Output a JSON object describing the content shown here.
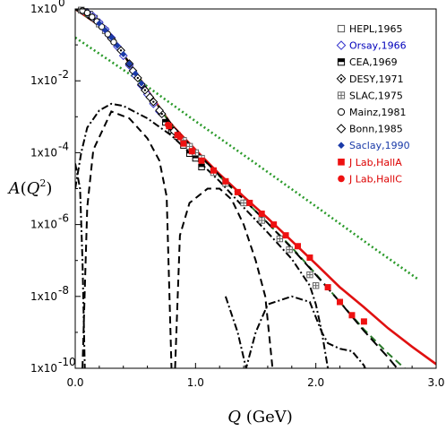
{
  "chart_data": {
    "type": "scatter",
    "title": "",
    "xlabel": "Q (GeV)",
    "ylabel": "A(Q^2)",
    "xlim": [
      0.0,
      3.0
    ],
    "ylim": [
      1e-10,
      1.0
    ],
    "yscale": "log",
    "grid": false,
    "legend_position": "top-right",
    "x_ticks": [
      {
        "value": 0.0,
        "label": "0.0"
      },
      {
        "value": 1.0,
        "label": "1.0"
      },
      {
        "value": 2.0,
        "label": "2.0"
      },
      {
        "value": 3.0,
        "label": "3.0"
      }
    ],
    "y_ticks": [
      {
        "value": 1.0,
        "base": "1x10",
        "exp": "0"
      },
      {
        "value": 0.01,
        "base": "1x10",
        "exp": "-2"
      },
      {
        "value": 0.0001,
        "base": "1x10",
        "exp": "-4"
      },
      {
        "value": 1e-06,
        "base": "1x10",
        "exp": "-6"
      },
      {
        "value": 1e-08,
        "base": "1x10",
        "exp": "-8"
      },
      {
        "value": 1e-10,
        "base": "1x10",
        "exp": "-10"
      }
    ],
    "series": [
      {
        "name": "HEPL,1965",
        "marker": "open-square",
        "color": "#555555",
        "label_color": "#000000",
        "points": [
          [
            0.05,
            0.93
          ],
          [
            0.08,
            0.85
          ],
          [
            0.12,
            0.72
          ],
          [
            0.16,
            0.55
          ],
          [
            0.2,
            0.38
          ],
          [
            0.25,
            0.25
          ]
        ]
      },
      {
        "name": "Orsay,1966",
        "marker": "open-diamond",
        "color": "#3333cc",
        "label_color": "#0000bb",
        "points": [
          [
            0.1,
            0.8
          ],
          [
            0.15,
            0.62
          ],
          [
            0.2,
            0.42
          ],
          [
            0.25,
            0.27
          ],
          [
            0.3,
            0.16
          ],
          [
            0.35,
            0.09
          ],
          [
            0.4,
            0.05
          ],
          [
            0.45,
            0.027
          ],
          [
            0.5,
            0.014
          ],
          [
            0.55,
            0.0075
          ],
          [
            0.6,
            0.0042
          ],
          [
            0.65,
            0.0023
          ],
          [
            0.7,
            0.0014
          ]
        ]
      },
      {
        "name": "CEA,1969",
        "marker": "half-square",
        "color": "#000000",
        "label_color": "#000000",
        "points": [
          [
            0.75,
            0.0007
          ],
          [
            0.8,
            0.00042
          ],
          [
            0.85,
            0.00028
          ],
          [
            0.9,
            0.00016
          ],
          [
            0.95,
            9.5e-05
          ],
          [
            1.0,
            7e-05
          ],
          [
            1.05,
            4e-05
          ]
        ]
      },
      {
        "name": "DESY,1971",
        "marker": "dotted-diamond",
        "color": "#000000",
        "label_color": "#000000",
        "points": [
          [
            0.3,
            0.15
          ],
          [
            0.38,
            0.07
          ],
          [
            0.45,
            0.03
          ],
          [
            0.52,
            0.012
          ],
          [
            0.58,
            0.0055
          ],
          [
            0.65,
            0.0026
          ],
          [
            0.72,
            0.0012
          ]
        ]
      },
      {
        "name": "SLAC,1975",
        "marker": "crossed-square",
        "color": "#666666",
        "label_color": "#000000",
        "points": [
          [
            0.9,
            0.00022
          ],
          [
            0.95,
            0.00015
          ],
          [
            1.0,
            0.0001
          ],
          [
            1.05,
            7e-05
          ],
          [
            1.15,
            2.8e-05
          ],
          [
            1.25,
            1.4e-05
          ],
          [
            1.4,
            4e-06
          ],
          [
            1.55,
            1.3e-06
          ],
          [
            1.7,
            4e-07
          ],
          [
            1.78,
            2e-07
          ],
          [
            1.95,
            4e-08
          ],
          [
            2.0,
            2e-08
          ]
        ]
      },
      {
        "name": "Mainz,1981",
        "marker": "open-circle",
        "color": "#000000",
        "label_color": "#000000",
        "points": [
          [
            0.06,
            0.9
          ],
          [
            0.1,
            0.78
          ],
          [
            0.14,
            0.6
          ],
          [
            0.18,
            0.45
          ],
          [
            0.22,
            0.32
          ],
          [
            0.27,
            0.2
          ],
          [
            0.32,
            0.12
          ]
        ]
      },
      {
        "name": "Bonn,1985",
        "marker": "open-diamond-small",
        "color": "#000000",
        "label_color": "#000000",
        "points": [
          [
            0.48,
            0.019
          ],
          [
            0.55,
            0.008
          ],
          [
            0.62,
            0.0035
          ],
          [
            0.7,
            0.0015
          ],
          [
            0.78,
            0.0006
          ],
          [
            0.82,
            0.0004
          ]
        ]
      },
      {
        "name": "Saclay,1990",
        "marker": "filled-diamond",
        "color": "#1a3aa8",
        "label_color": "#1a3aa8",
        "points": [
          [
            0.2,
            0.4
          ],
          [
            0.25,
            0.26
          ],
          [
            0.3,
            0.16
          ],
          [
            0.35,
            0.095
          ],
          [
            0.4,
            0.055
          ],
          [
            0.45,
            0.03
          ],
          [
            0.5,
            0.016
          ],
          [
            0.55,
            0.0085
          ]
        ]
      },
      {
        "name": "J Lab,HallA",
        "marker": "filled-square",
        "color": "#ee1111",
        "label_color": "#dd0000",
        "points": [
          [
            0.78,
            0.00055
          ],
          [
            0.85,
            0.00031
          ],
          [
            0.9,
            0.00018
          ],
          [
            0.97,
            0.00011
          ],
          [
            1.05,
            6e-05
          ],
          [
            1.15,
            3.2e-05
          ],
          [
            1.25,
            1.6e-05
          ],
          [
            1.35,
            8e-06
          ],
          [
            1.45,
            4e-06
          ],
          [
            1.55,
            2e-06
          ],
          [
            1.65,
            1e-06
          ],
          [
            1.75,
            5e-07
          ],
          [
            1.85,
            2.5e-07
          ],
          [
            1.95,
            1.2e-07
          ],
          [
            2.1,
            1.8e-08
          ],
          [
            2.2,
            7e-09
          ],
          [
            2.3,
            3e-09
          ],
          [
            2.4,
            2e-09
          ]
        ]
      },
      {
        "name": "J Lab,HallC",
        "marker": "filled-circle",
        "color": "#ee1111",
        "label_color": "#dd0000",
        "points": [
          [
            0.77,
            0.0006
          ],
          [
            0.87,
            0.00027
          ],
          [
            0.97,
            0.00011
          ]
        ]
      }
    ],
    "curves": [
      {
        "style": "solid",
        "color": "#e01010",
        "points": [
          [
            0.0,
            1.0
          ],
          [
            0.2,
            0.35
          ],
          [
            0.4,
            0.055
          ],
          [
            0.6,
            0.0055
          ],
          [
            0.8,
            0.0006
          ],
          [
            1.0,
            0.00012
          ],
          [
            1.2,
            2.5e-05
          ],
          [
            1.4,
            6e-06
          ],
          [
            1.6,
            1.5e-06
          ],
          [
            1.8,
            3.5e-07
          ],
          [
            2.0,
            8e-08
          ],
          [
            2.2,
            1.8e-08
          ],
          [
            2.4,
            5e-09
          ],
          [
            2.6,
            1.3e-09
          ],
          [
            2.8,
            4e-10
          ],
          [
            3.0,
            1.3e-10
          ]
        ]
      },
      {
        "style": "dash",
        "color": "#2a7a2a",
        "points": [
          [
            0.0,
            1.0
          ],
          [
            0.2,
            0.35
          ],
          [
            0.4,
            0.055
          ],
          [
            0.6,
            0.0055
          ],
          [
            0.8,
            0.00058
          ],
          [
            1.0,
            0.00011
          ],
          [
            1.2,
            2.2e-05
          ],
          [
            1.4,
            5e-06
          ],
          [
            1.6,
            1.1e-06
          ],
          [
            1.8,
            2.3e-07
          ],
          [
            2.0,
            4.2e-08
          ],
          [
            2.2,
            7e-09
          ],
          [
            2.4,
            1.2e-09
          ],
          [
            2.6,
            2.6e-10
          ],
          [
            2.8,
            6.5e-11
          ]
        ]
      },
      {
        "style": "dot",
        "color": "#2a9a2a",
        "points": [
          [
            0.0,
            0.16
          ],
          [
            0.5,
            0.012
          ],
          [
            1.0,
            0.00075
          ],
          [
            1.5,
            5e-05
          ],
          [
            2.0,
            3.2e-06
          ],
          [
            2.5,
            2e-07
          ],
          [
            2.85,
            3e-08
          ]
        ]
      },
      {
        "style": "dashdot",
        "color": "#000000",
        "points": [
          [
            0.0,
            1e-05
          ],
          [
            0.05,
            0.0001
          ],
          [
            0.1,
            0.0005
          ],
          [
            0.2,
            0.0015
          ],
          [
            0.3,
            0.0023
          ],
          [
            0.4,
            0.002
          ],
          [
            0.6,
            0.0009
          ],
          [
            0.8,
            0.0003
          ],
          [
            1.0,
            7e-05
          ],
          [
            1.2,
            1.6e-05
          ],
          [
            1.4,
            3e-06
          ],
          [
            1.6,
            6e-07
          ],
          [
            1.8,
            1.1e-07
          ],
          [
            1.95,
            2e-08
          ],
          [
            2.0,
            6e-09
          ],
          [
            2.05,
            1e-09
          ],
          [
            2.1,
            5e-10
          ],
          [
            2.2,
            3.5e-10
          ],
          [
            2.3,
            3e-10
          ],
          [
            2.4,
            1.2e-10
          ],
          [
            2.45,
            5e-11
          ]
        ]
      },
      {
        "style": "dash-long",
        "color": "#000000",
        "points": [
          [
            0.0,
            1.0
          ],
          [
            0.2,
            0.35
          ],
          [
            0.4,
            0.055
          ],
          [
            0.6,
            0.0055
          ],
          [
            0.8,
            0.0006
          ],
          [
            1.0,
            0.00011
          ],
          [
            1.2,
            2.3e-05
          ],
          [
            1.4,
            5e-06
          ],
          [
            1.6,
            1.1e-06
          ],
          [
            1.8,
            2.2e-07
          ],
          [
            2.0,
            4e-08
          ],
          [
            2.2,
            7e-09
          ],
          [
            2.4,
            1.1e-09
          ],
          [
            2.6,
            2e-10
          ],
          [
            2.7,
            8e-11
          ]
        ]
      },
      {
        "style": "dash",
        "color": "#000000",
        "points": [
          [
            0.06,
            1e-10
          ],
          [
            0.1,
            3e-06
          ],
          [
            0.15,
            0.00012
          ],
          [
            0.3,
            0.0014
          ],
          [
            0.45,
            0.0009
          ],
          [
            0.6,
            0.00025
          ],
          [
            0.7,
            6e-05
          ],
          [
            0.76,
            6e-06
          ],
          [
            0.8,
            1e-10
          ]
        ]
      },
      {
        "style": "dash",
        "color": "#000000",
        "points": [
          [
            0.83,
            1e-10
          ],
          [
            0.87,
            5e-07
          ],
          [
            0.95,
            4e-06
          ],
          [
            1.1,
            1e-05
          ],
          [
            1.2,
            1e-05
          ],
          [
            1.3,
            5e-06
          ],
          [
            1.4,
            1e-06
          ],
          [
            1.5,
            1e-07
          ],
          [
            1.58,
            1e-08
          ],
          [
            1.64,
            1e-10
          ]
        ]
      },
      {
        "style": "dashdot",
        "color": "#000000",
        "points": [
          [
            1.25,
            1e-08
          ],
          [
            1.35,
            1e-09
          ],
          [
            1.42,
            1e-10
          ],
          [
            1.5,
            1e-09
          ],
          [
            1.6,
            6e-09
          ],
          [
            1.8,
            1e-08
          ],
          [
            1.95,
            7e-09
          ],
          [
            2.05,
            1e-09
          ],
          [
            2.1,
            1e-10
          ]
        ]
      },
      {
        "style": "dashdot",
        "color": "#000000",
        "points": [
          [
            0.0,
            5e-05
          ],
          [
            0.04,
            1e-05
          ],
          [
            0.06,
            1e-07
          ],
          [
            0.08,
            1e-10
          ]
        ]
      }
    ]
  }
}
